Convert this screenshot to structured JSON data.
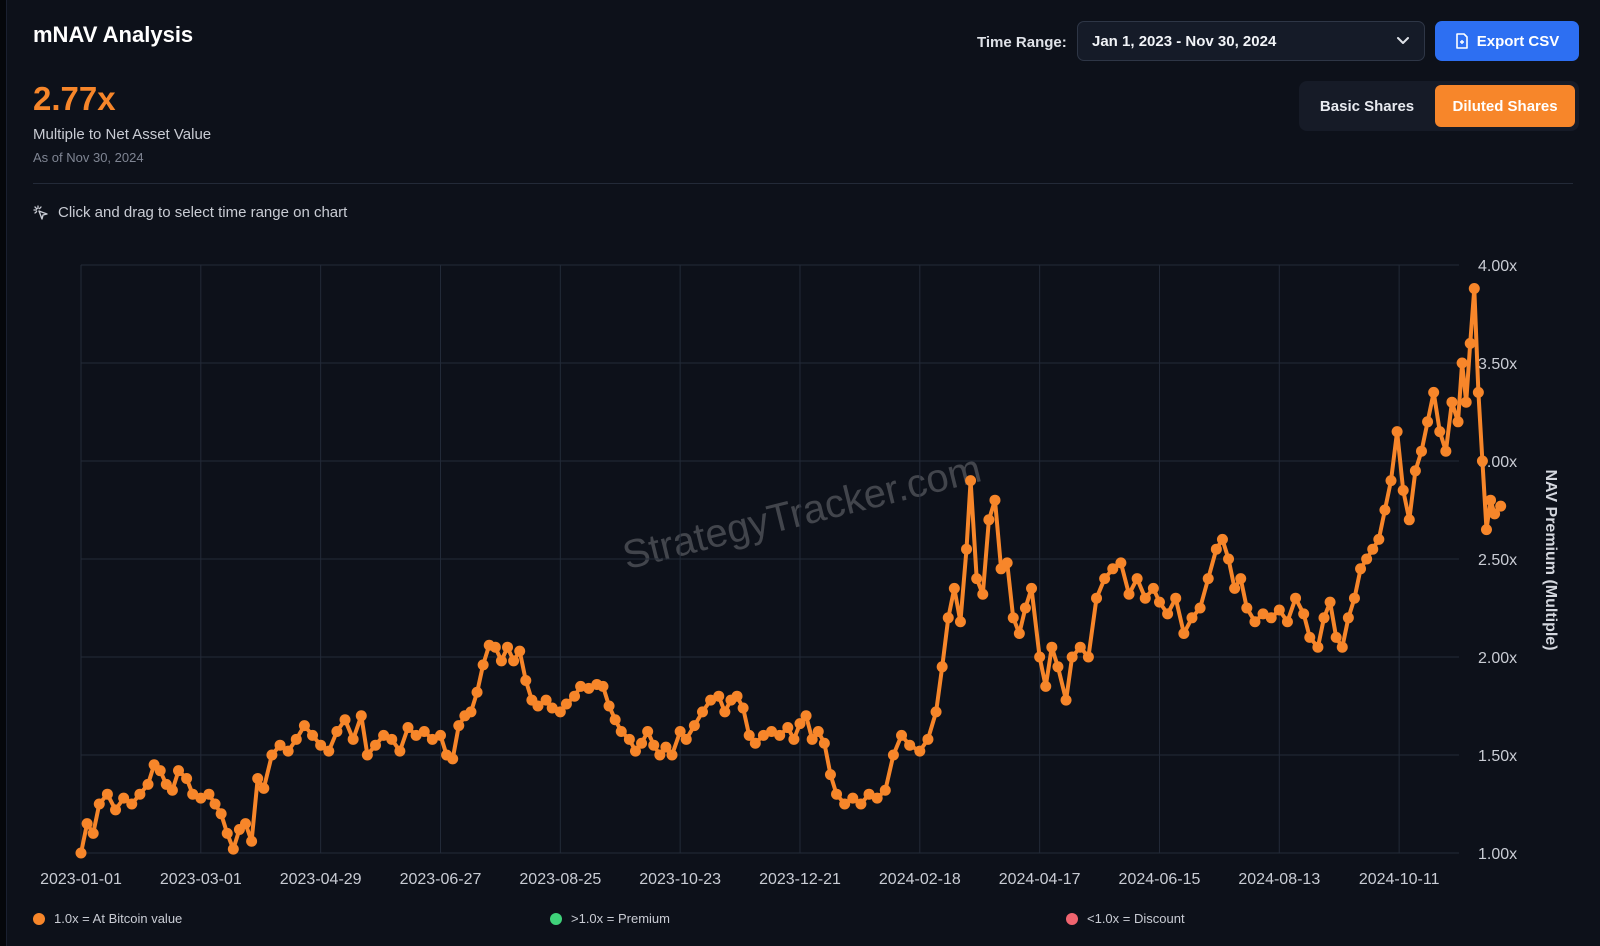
{
  "header": {
    "title": "mNAV Analysis",
    "time_range_label": "Time Range:",
    "time_range_value": "Jan 1, 2023 - Nov 30, 2024",
    "export_label": "Export CSV"
  },
  "summary": {
    "value": "2.77x",
    "caption": "Multiple to Net Asset Value",
    "as_of": "As of Nov 30, 2024"
  },
  "share_toggle": {
    "options": [
      "Basic Shares",
      "Diluted Shares"
    ],
    "selected": "Diluted Shares"
  },
  "hint": "Click and drag to select time range on chart",
  "watermark": "StrategyTracker.com",
  "legend": [
    {
      "label": "1.0x = At Bitcoin value",
      "color": "#f7862a"
    },
    {
      "label": ">1.0x = Premium",
      "color": "#3fd27a"
    },
    {
      "label": "<1.0x = Discount",
      "color": "#f0646f"
    }
  ],
  "colors": {
    "accent": "#f7862a",
    "background": "#0d111a",
    "grid": "#232a38",
    "button_blue": "#2d6ff2"
  },
  "chart_data": {
    "type": "line",
    "ylabel": "NAV Premium (Multiple)",
    "ylim": [
      1.0,
      4.0
    ],
    "y_ticks": [
      "1.00x",
      "1.50x",
      "2.00x",
      "2.50x",
      "3.00x",
      "3.50x",
      "4.00x"
    ],
    "x_ticks": [
      "2023-01-01",
      "2023-03-01",
      "2023-04-29",
      "2023-06-27",
      "2023-08-25",
      "2023-10-23",
      "2023-12-21",
      "2024-02-18",
      "2024-04-17",
      "2024-06-15",
      "2024-08-13",
      "2024-10-11"
    ],
    "xlim": [
      "2023-01-01",
      "2024-11-30"
    ],
    "grid": true,
    "series": [
      {
        "color": "#f7862a",
        "points": [
          [
            "2023-01-01",
            1.0
          ],
          [
            "2023-01-04",
            1.15
          ],
          [
            "2023-01-07",
            1.1
          ],
          [
            "2023-01-10",
            1.25
          ],
          [
            "2023-01-14",
            1.3
          ],
          [
            "2023-01-18",
            1.22
          ],
          [
            "2023-01-22",
            1.28
          ],
          [
            "2023-01-26",
            1.25
          ],
          [
            "2023-01-30",
            1.3
          ],
          [
            "2023-02-03",
            1.35
          ],
          [
            "2023-02-06",
            1.45
          ],
          [
            "2023-02-09",
            1.42
          ],
          [
            "2023-02-12",
            1.35
          ],
          [
            "2023-02-15",
            1.32
          ],
          [
            "2023-02-18",
            1.42
          ],
          [
            "2023-02-22",
            1.38
          ],
          [
            "2023-02-25",
            1.3
          ],
          [
            "2023-03-01",
            1.28
          ],
          [
            "2023-03-05",
            1.3
          ],
          [
            "2023-03-08",
            1.25
          ],
          [
            "2023-03-11",
            1.2
          ],
          [
            "2023-03-14",
            1.1
          ],
          [
            "2023-03-17",
            1.02
          ],
          [
            "2023-03-20",
            1.12
          ],
          [
            "2023-03-23",
            1.15
          ],
          [
            "2023-03-26",
            1.06
          ],
          [
            "2023-03-29",
            1.38
          ],
          [
            "2023-04-01",
            1.33
          ],
          [
            "2023-04-05",
            1.5
          ],
          [
            "2023-04-09",
            1.55
          ],
          [
            "2023-04-13",
            1.52
          ],
          [
            "2023-04-17",
            1.58
          ],
          [
            "2023-04-21",
            1.65
          ],
          [
            "2023-04-25",
            1.6
          ],
          [
            "2023-04-29",
            1.55
          ],
          [
            "2023-05-03",
            1.52
          ],
          [
            "2023-05-07",
            1.62
          ],
          [
            "2023-05-11",
            1.68
          ],
          [
            "2023-05-15",
            1.58
          ],
          [
            "2023-05-19",
            1.7
          ],
          [
            "2023-05-22",
            1.5
          ],
          [
            "2023-05-26",
            1.55
          ],
          [
            "2023-05-30",
            1.6
          ],
          [
            "2023-06-03",
            1.58
          ],
          [
            "2023-06-07",
            1.52
          ],
          [
            "2023-06-11",
            1.64
          ],
          [
            "2023-06-15",
            1.6
          ],
          [
            "2023-06-19",
            1.62
          ],
          [
            "2023-06-23",
            1.58
          ],
          [
            "2023-06-27",
            1.6
          ],
          [
            "2023-06-30",
            1.5
          ],
          [
            "2023-07-03",
            1.48
          ],
          [
            "2023-07-06",
            1.65
          ],
          [
            "2023-07-09",
            1.7
          ],
          [
            "2023-07-12",
            1.72
          ],
          [
            "2023-07-15",
            1.82
          ],
          [
            "2023-07-18",
            1.96
          ],
          [
            "2023-07-21",
            2.06
          ],
          [
            "2023-07-24",
            2.05
          ],
          [
            "2023-07-27",
            1.98
          ],
          [
            "2023-07-30",
            2.05
          ],
          [
            "2023-08-02",
            1.98
          ],
          [
            "2023-08-05",
            2.03
          ],
          [
            "2023-08-08",
            1.88
          ],
          [
            "2023-08-11",
            1.78
          ],
          [
            "2023-08-14",
            1.75
          ],
          [
            "2023-08-18",
            1.78
          ],
          [
            "2023-08-21",
            1.74
          ],
          [
            "2023-08-25",
            1.72
          ],
          [
            "2023-08-28",
            1.76
          ],
          [
            "2023-09-01",
            1.8
          ],
          [
            "2023-09-04",
            1.85
          ],
          [
            "2023-09-08",
            1.84
          ],
          [
            "2023-09-12",
            1.86
          ],
          [
            "2023-09-15",
            1.85
          ],
          [
            "2023-09-18",
            1.75
          ],
          [
            "2023-09-21",
            1.68
          ],
          [
            "2023-09-24",
            1.62
          ],
          [
            "2023-09-28",
            1.58
          ],
          [
            "2023-10-01",
            1.52
          ],
          [
            "2023-10-04",
            1.56
          ],
          [
            "2023-10-07",
            1.62
          ],
          [
            "2023-10-10",
            1.55
          ],
          [
            "2023-10-13",
            1.5
          ],
          [
            "2023-10-16",
            1.54
          ],
          [
            "2023-10-19",
            1.5
          ],
          [
            "2023-10-23",
            1.62
          ],
          [
            "2023-10-26",
            1.58
          ],
          [
            "2023-10-30",
            1.65
          ],
          [
            "2023-11-03",
            1.72
          ],
          [
            "2023-11-07",
            1.78
          ],
          [
            "2023-11-11",
            1.8
          ],
          [
            "2023-11-14",
            1.72
          ],
          [
            "2023-11-17",
            1.78
          ],
          [
            "2023-11-20",
            1.8
          ],
          [
            "2023-11-23",
            1.74
          ],
          [
            "2023-11-26",
            1.6
          ],
          [
            "2023-11-29",
            1.56
          ],
          [
            "2023-12-03",
            1.6
          ],
          [
            "2023-12-07",
            1.62
          ],
          [
            "2023-12-11",
            1.6
          ],
          [
            "2023-12-15",
            1.64
          ],
          [
            "2023-12-18",
            1.58
          ],
          [
            "2023-12-21",
            1.66
          ],
          [
            "2023-12-24",
            1.7
          ],
          [
            "2023-12-27",
            1.58
          ],
          [
            "2023-12-30",
            1.62
          ],
          [
            "2024-01-02",
            1.56
          ],
          [
            "2024-01-05",
            1.4
          ],
          [
            "2024-01-08",
            1.3
          ],
          [
            "2024-01-12",
            1.25
          ],
          [
            "2024-01-16",
            1.28
          ],
          [
            "2024-01-20",
            1.25
          ],
          [
            "2024-01-24",
            1.3
          ],
          [
            "2024-01-28",
            1.28
          ],
          [
            "2024-02-01",
            1.32
          ],
          [
            "2024-02-05",
            1.5
          ],
          [
            "2024-02-09",
            1.6
          ],
          [
            "2024-02-13",
            1.55
          ],
          [
            "2024-02-18",
            1.52
          ],
          [
            "2024-02-22",
            1.58
          ],
          [
            "2024-02-26",
            1.72
          ],
          [
            "2024-02-29",
            1.95
          ],
          [
            "2024-03-03",
            2.2
          ],
          [
            "2024-03-06",
            2.35
          ],
          [
            "2024-03-09",
            2.18
          ],
          [
            "2024-03-12",
            2.55
          ],
          [
            "2024-03-14",
            2.9
          ],
          [
            "2024-03-17",
            2.4
          ],
          [
            "2024-03-20",
            2.32
          ],
          [
            "2024-03-23",
            2.7
          ],
          [
            "2024-03-26",
            2.8
          ],
          [
            "2024-03-29",
            2.45
          ],
          [
            "2024-04-01",
            2.48
          ],
          [
            "2024-04-04",
            2.2
          ],
          [
            "2024-04-07",
            2.12
          ],
          [
            "2024-04-10",
            2.25
          ],
          [
            "2024-04-13",
            2.35
          ],
          [
            "2024-04-17",
            2.0
          ],
          [
            "2024-04-20",
            1.85
          ],
          [
            "2024-04-23",
            2.05
          ],
          [
            "2024-04-26",
            1.95
          ],
          [
            "2024-04-30",
            1.78
          ],
          [
            "2024-05-03",
            2.0
          ],
          [
            "2024-05-07",
            2.05
          ],
          [
            "2024-05-11",
            2.0
          ],
          [
            "2024-05-15",
            2.3
          ],
          [
            "2024-05-19",
            2.4
          ],
          [
            "2024-05-23",
            2.45
          ],
          [
            "2024-05-27",
            2.48
          ],
          [
            "2024-05-31",
            2.32
          ],
          [
            "2024-06-04",
            2.4
          ],
          [
            "2024-06-08",
            2.3
          ],
          [
            "2024-06-12",
            2.35
          ],
          [
            "2024-06-15",
            2.28
          ],
          [
            "2024-06-19",
            2.22
          ],
          [
            "2024-06-23",
            2.3
          ],
          [
            "2024-06-27",
            2.12
          ],
          [
            "2024-07-01",
            2.2
          ],
          [
            "2024-07-05",
            2.25
          ],
          [
            "2024-07-09",
            2.4
          ],
          [
            "2024-07-13",
            2.55
          ],
          [
            "2024-07-16",
            2.6
          ],
          [
            "2024-07-19",
            2.5
          ],
          [
            "2024-07-22",
            2.35
          ],
          [
            "2024-07-25",
            2.4
          ],
          [
            "2024-07-28",
            2.25
          ],
          [
            "2024-08-01",
            2.18
          ],
          [
            "2024-08-05",
            2.22
          ],
          [
            "2024-08-09",
            2.2
          ],
          [
            "2024-08-13",
            2.24
          ],
          [
            "2024-08-17",
            2.18
          ],
          [
            "2024-08-21",
            2.3
          ],
          [
            "2024-08-25",
            2.22
          ],
          [
            "2024-08-28",
            2.1
          ],
          [
            "2024-09-01",
            2.05
          ],
          [
            "2024-09-04",
            2.2
          ],
          [
            "2024-09-07",
            2.28
          ],
          [
            "2024-09-10",
            2.1
          ],
          [
            "2024-09-13",
            2.05
          ],
          [
            "2024-09-16",
            2.2
          ],
          [
            "2024-09-19",
            2.3
          ],
          [
            "2024-09-22",
            2.45
          ],
          [
            "2024-09-25",
            2.5
          ],
          [
            "2024-09-28",
            2.55
          ],
          [
            "2024-10-01",
            2.6
          ],
          [
            "2024-10-04",
            2.75
          ],
          [
            "2024-10-07",
            2.9
          ],
          [
            "2024-10-10",
            3.15
          ],
          [
            "2024-10-13",
            2.85
          ],
          [
            "2024-10-16",
            2.7
          ],
          [
            "2024-10-19",
            2.95
          ],
          [
            "2024-10-22",
            3.05
          ],
          [
            "2024-10-25",
            3.2
          ],
          [
            "2024-10-28",
            3.35
          ],
          [
            "2024-10-31",
            3.15
          ],
          [
            "2024-11-03",
            3.05
          ],
          [
            "2024-11-06",
            3.3
          ],
          [
            "2024-11-09",
            3.2
          ],
          [
            "2024-11-11",
            3.5
          ],
          [
            "2024-11-13",
            3.3
          ],
          [
            "2024-11-15",
            3.6
          ],
          [
            "2024-11-17",
            3.88
          ],
          [
            "2024-11-19",
            3.35
          ],
          [
            "2024-11-21",
            3.0
          ],
          [
            "2024-11-23",
            2.65
          ],
          [
            "2024-11-25",
            2.8
          ],
          [
            "2024-11-27",
            2.73
          ],
          [
            "2024-11-30",
            2.77
          ]
        ]
      }
    ]
  }
}
